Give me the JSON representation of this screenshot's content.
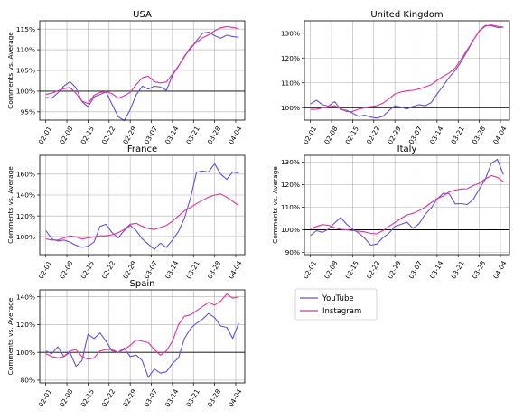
{
  "chart_data": {
    "type": "line",
    "x_tick_labels": [
      "02-01",
      "02-08",
      "02-15",
      "02-22",
      "02-29",
      "03-07",
      "03-14",
      "03-21",
      "03-28",
      "04-04"
    ],
    "legend": {
      "placement": "bottom-right",
      "entries": [
        {
          "name": "YouTube",
          "color": "#6a4fd6"
        },
        {
          "name": "Instagram",
          "color": "#e0329a"
        }
      ]
    },
    "grid": true,
    "reference_line_y": 100,
    "panels": [
      {
        "title": "USA",
        "ylabel": "Comments vs. Average",
        "ylim": [
          93,
          117
        ],
        "yticks": [
          95,
          100,
          105,
          110,
          115
        ],
        "ytick_labels": [
          "95%",
          "100%",
          "105%",
          "110%",
          "115%"
        ],
        "series": [
          {
            "name": "YouTube",
            "x": [
              0,
              2,
              4,
              6,
              8,
              10,
              12,
              14,
              16,
              18,
              20,
              22,
              24,
              26,
              28,
              30,
              32,
              34,
              36,
              38,
              40,
              42,
              44,
              46,
              48,
              50,
              52,
              54,
              56,
              58,
              60,
              62,
              64
            ],
            "values": [
              98.5,
              98.3,
              99.6,
              101.2,
              102.3,
              100.8,
              97.5,
              96.2,
              98.6,
              99.2,
              99.8,
              96.8,
              93.8,
              92.9,
              95.5,
              99.1,
              101.2,
              100.5,
              101.2,
              101.0,
              100.2,
              103.8,
              106.0,
              108.5,
              110.2,
              112.2,
              114.0,
              114.3,
              113.4,
              112.8,
              113.5,
              113.2,
              113.0
            ]
          },
          {
            "name": "Instagram",
            "x": [
              0,
              2,
              4,
              6,
              8,
              10,
              12,
              14,
              16,
              18,
              20,
              22,
              24,
              26,
              28,
              30,
              32,
              34,
              36,
              38,
              40,
              42,
              44,
              46,
              48,
              50,
              52,
              54,
              56,
              58,
              60,
              62,
              64
            ],
            "values": [
              99.2,
              99.5,
              100.1,
              100.6,
              100.9,
              99.5,
              97.6,
              97.0,
              99.0,
              99.7,
              99.9,
              99.4,
              98.3,
              98.9,
              99.7,
              101.6,
              103.2,
              103.6,
              102.3,
              102.0,
              102.2,
              104.1,
              106.1,
              108.3,
              110.6,
              111.8,
              112.9,
              113.6,
              114.6,
              115.3,
              115.6,
              115.4,
              115.1
            ]
          }
        ]
      },
      {
        "title": "United Kingdom",
        "ylabel": "",
        "ylim": [
          95,
          135
        ],
        "yticks": [
          100,
          110,
          120,
          130
        ],
        "ytick_labels": [
          "100%",
          "110%",
          "120%",
          "130%"
        ],
        "series": [
          {
            "name": "YouTube",
            "x": [
              0,
              2,
              4,
              6,
              8,
              10,
              12,
              14,
              16,
              18,
              20,
              22,
              24,
              26,
              28,
              30,
              32,
              34,
              36,
              38,
              40,
              42,
              44,
              46,
              48,
              50,
              52,
              54,
              56,
              58,
              60,
              62,
              64
            ],
            "values": [
              101.5,
              103.0,
              101.2,
              100.6,
              102.5,
              99.2,
              99.0,
              97.8,
              96.5,
              97.0,
              96.2,
              95.8,
              96.5,
              98.8,
              100.8,
              100.2,
              99.5,
              100.5,
              101.2,
              100.8,
              102.0,
              105.5,
              108.8,
              112.2,
              115.0,
              118.6,
              122.8,
              127.2,
              131.0,
              133.1,
              133.0,
              132.3,
              132.4
            ]
          },
          {
            "name": "Instagram",
            "x": [
              0,
              2,
              4,
              6,
              8,
              10,
              12,
              14,
              16,
              18,
              20,
              22,
              24,
              26,
              28,
              30,
              32,
              34,
              36,
              38,
              40,
              42,
              44,
              46,
              48,
              50,
              52,
              54,
              56,
              58,
              60,
              62,
              64
            ],
            "values": [
              99.3,
              99.4,
              99.9,
              100.3,
              100.8,
              99.6,
              98.4,
              98.5,
              99.4,
              100.0,
              100.4,
              100.8,
              101.8,
              103.6,
              105.5,
              106.3,
              106.8,
              107.0,
              107.5,
              108.3,
              109.2,
              111.0,
              112.6,
              114.0,
              116.0,
              119.6,
              123.3,
              127.2,
              130.8,
              132.8,
              133.3,
              132.8,
              132.4
            ]
          }
        ]
      },
      {
        "title": "France",
        "ylabel": "Comments vs. Average",
        "ylim": [
          83,
          178
        ],
        "yticks": [
          100,
          120,
          140,
          160
        ],
        "ytick_labels": [
          "100%",
          "120%",
          "140%",
          "160%"
        ],
        "series": [
          {
            "name": "YouTube",
            "x": [
              0,
              2,
              4,
              6,
              8,
              10,
              12,
              14,
              16,
              18,
              20,
              22,
              24,
              26,
              28,
              30,
              32,
              34,
              36,
              38,
              40,
              42,
              44,
              46,
              48,
              50,
              52,
              54,
              56,
              58,
              60,
              62,
              64
            ],
            "values": [
              106,
              98,
              96,
              97,
              95,
              92,
              90,
              91,
              95,
              110,
              112,
              104,
              99,
              106,
              111,
              106,
              98,
              93,
              88,
              94,
              90,
              97,
              105,
              118,
              137,
              162,
              163,
              162,
              170,
              160,
              155,
              162,
              161
            ]
          },
          {
            "name": "Instagram",
            "x": [
              0,
              2,
              4,
              6,
              8,
              10,
              12,
              14,
              16,
              18,
              20,
              22,
              24,
              26,
              28,
              30,
              32,
              34,
              36,
              38,
              40,
              42,
              44,
              46,
              48,
              50,
              52,
              54,
              56,
              58,
              60,
              62,
              64
            ],
            "values": [
              98,
              97,
              97,
              99,
              101,
              100,
              98,
              99,
              100,
              101,
              101,
              102,
              104,
              107,
              112,
              113,
              110,
              108,
              107,
              109,
              111,
              115,
              120,
              125,
              128,
              132,
              135,
              138,
              140,
              141,
              138,
              134,
              130
            ]
          }
        ]
      },
      {
        "title": "Italy",
        "ylabel": "Comments vs. Average",
        "ylim": [
          89,
          133
        ],
        "yticks": [
          90,
          100,
          110,
          120,
          130
        ],
        "ytick_labels": [
          "90%",
          "100%",
          "110%",
          "120%",
          "130%"
        ],
        "series": [
          {
            "name": "YouTube",
            "x": [
              0,
              2,
              4,
              6,
              8,
              10,
              12,
              14,
              16,
              18,
              20,
              22,
              24,
              26,
              28,
              30,
              32,
              34,
              36,
              38,
              40,
              42,
              44,
              46,
              48,
              50,
              52,
              54,
              56,
              58,
              60,
              62,
              64
            ],
            "values": [
              97.5,
              99.6,
              98.9,
              100.3,
              103.0,
              105.5,
              102.5,
              100.3,
              98.6,
              96.2,
              93.2,
              93.7,
              96.5,
              98.5,
              101.5,
              102.4,
              103.4,
              100.6,
              102.7,
              106.8,
              109.6,
              113.6,
              116.2,
              116.0,
              111.5,
              111.6,
              111.2,
              113.5,
              118.0,
              122.5,
              129.5,
              131.2,
              124.5
            ]
          },
          {
            "name": "Instagram",
            "x": [
              0,
              2,
              4,
              6,
              8,
              10,
              12,
              14,
              16,
              18,
              20,
              22,
              24,
              26,
              28,
              30,
              32,
              34,
              36,
              38,
              40,
              42,
              44,
              46,
              48,
              50,
              52,
              54,
              56,
              58,
              60,
              62,
              64
            ],
            "values": [
              100.5,
              101.5,
              102.3,
              102.0,
              101.0,
              100.2,
              100.0,
              99.6,
              99.4,
              99.1,
              98.4,
              98.2,
              99.6,
              101.5,
              103.2,
              105.0,
              106.6,
              107.3,
              108.5,
              110.0,
              112.0,
              113.8,
              115.0,
              116.8,
              117.6,
              118.1,
              118.2,
              119.6,
              120.6,
              122.6,
              124.0,
              123.3,
              121.3
            ]
          }
        ]
      },
      {
        "title": "Spain",
        "ylabel": "Comments vs. Average",
        "ylim": [
          78,
          145
        ],
        "yticks": [
          80,
          100,
          120,
          140
        ],
        "ytick_labels": [
          "80%",
          "100%",
          "120%",
          "140%"
        ],
        "series": [
          {
            "name": "YouTube",
            "x": [
              0,
              2,
              4,
              6,
              8,
              10,
              12,
              14,
              16,
              18,
              20,
              22,
              24,
              26,
              28,
              30,
              32,
              34,
              36,
              38,
              40,
              42,
              44,
              46,
              48,
              50,
              52,
              54,
              56,
              58,
              60,
              62,
              64
            ],
            "values": [
              101,
              99,
              104,
              97,
              100,
              90,
              94,
              113,
              110,
              114,
              108,
              101,
              100,
              103,
              97,
              98,
              94,
              82,
              88,
              85,
              86,
              92,
              96,
              110,
              117,
              121,
              124,
              128,
              125,
              119,
              118,
              110,
              121
            ]
          },
          {
            "name": "Instagram",
            "x": [
              0,
              2,
              4,
              6,
              8,
              10,
              12,
              14,
              16,
              18,
              20,
              22,
              24,
              26,
              28,
              30,
              32,
              34,
              36,
              38,
              40,
              42,
              44,
              46,
              48,
              50,
              52,
              54,
              56,
              58,
              60,
              62,
              64
            ],
            "values": [
              99,
              97,
              96,
              97,
              101,
              102,
              97,
              95,
              96,
              101,
              102,
              102,
              100,
              102,
              105,
              109,
              108,
              107,
              102,
              98,
              101,
              108,
              120,
              126,
              127,
              130,
              133,
              136,
              134,
              137,
              142,
              139,
              140
            ]
          }
        ]
      }
    ]
  }
}
